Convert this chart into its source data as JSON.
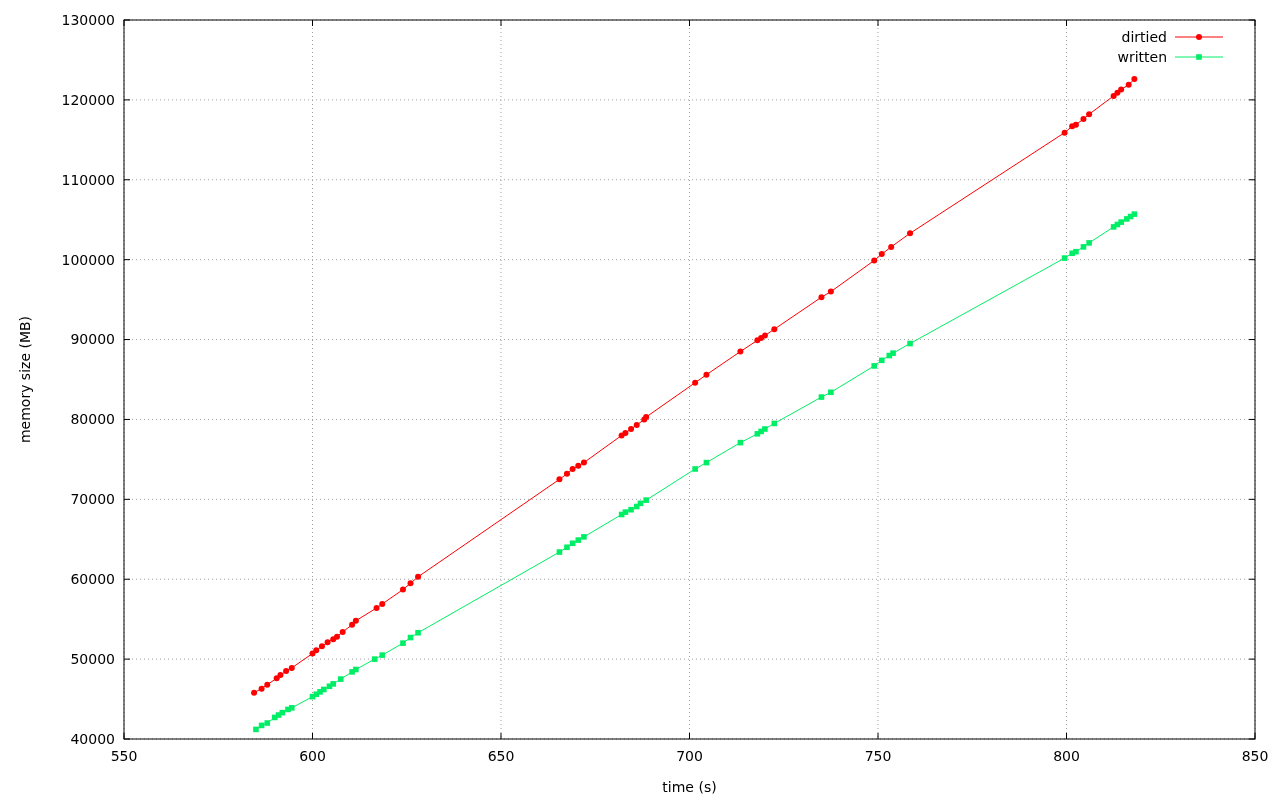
{
  "chart_data": {
    "type": "line",
    "xlabel": "time (s)",
    "ylabel": "memory size (MB)",
    "xlim": [
      550,
      850
    ],
    "ylim": [
      40000,
      130000
    ],
    "xticks": [
      550,
      600,
      650,
      700,
      750,
      800,
      850
    ],
    "yticks": [
      40000,
      50000,
      60000,
      70000,
      80000,
      90000,
      100000,
      110000,
      120000,
      130000
    ],
    "grid": true,
    "legend": "top right",
    "line_style": "solid",
    "series": [
      {
        "name": "dirtied",
        "color": "#ff0000",
        "marker": "circle",
        "x": [
          584.5,
          586.5,
          588,
          590.5,
          591.5,
          593,
          594.5,
          600,
          601,
          602.5,
          604,
          605.5,
          606.5,
          608,
          610.5,
          611.5,
          617,
          618.5,
          624,
          626,
          628,
          665.5,
          667.5,
          669,
          670.5,
          672,
          682,
          683,
          684.5,
          686,
          688,
          688.5,
          701.5,
          704.5,
          713.5,
          718,
          719,
          720,
          722.5,
          735,
          737.5,
          749,
          751,
          753.5,
          758.5,
          799.5,
          801.5,
          802.5,
          804.5,
          806,
          812.5,
          813.5,
          814.5,
          816.5,
          818
        ],
        "values": [
          45800,
          46300,
          46800,
          47600,
          48000,
          48500,
          48900,
          50700,
          51100,
          51600,
          52100,
          52500,
          52800,
          53400,
          54300,
          54800,
          56400,
          56900,
          58700,
          59500,
          60300,
          72500,
          73200,
          73800,
          74200,
          74600,
          78000,
          78300,
          78800,
          79300,
          80000,
          80300,
          84600,
          85600,
          88500,
          89900,
          90200,
          90500,
          91300,
          95300,
          96000,
          99900,
          100700,
          101600,
          103300,
          115900,
          116700,
          116900,
          117600,
          118200,
          120500,
          120900,
          121300,
          121900,
          122600
        ]
      },
      {
        "name": "written",
        "color": "#00ee66",
        "marker": "square",
        "x": [
          585,
          586.5,
          588,
          590,
          591,
          592,
          593.5,
          594.5,
          600,
          601,
          602,
          603,
          604.5,
          605.5,
          607.5,
          610.5,
          611.5,
          616.5,
          618.5,
          624,
          626,
          628,
          665.5,
          667.5,
          669,
          670.5,
          672,
          682,
          683,
          684.5,
          686,
          687,
          688.5,
          701.5,
          704.5,
          713.5,
          718,
          719,
          720,
          722.5,
          735,
          737.5,
          749,
          751,
          753,
          754,
          758.5,
          799.5,
          801.5,
          802.5,
          804.5,
          806,
          812.5,
          813.5,
          814.5,
          816,
          817,
          818
        ],
        "values": [
          41200,
          41700,
          42000,
          42700,
          43000,
          43300,
          43700,
          43900,
          45300,
          45600,
          45900,
          46200,
          46600,
          46900,
          47500,
          48400,
          48700,
          50000,
          50500,
          52000,
          52700,
          53300,
          63400,
          64000,
          64500,
          64900,
          65300,
          68100,
          68400,
          68700,
          69100,
          69500,
          69900,
          73800,
          74600,
          77100,
          78200,
          78500,
          78800,
          79500,
          82800,
          83400,
          86700,
          87400,
          88000,
          88300,
          89500,
          100200,
          100800,
          101000,
          101600,
          102100,
          104100,
          104400,
          104700,
          105100,
          105400,
          105700
        ]
      }
    ]
  }
}
